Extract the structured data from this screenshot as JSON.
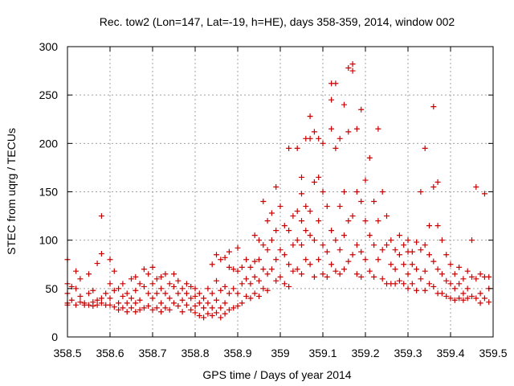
{
  "chart_data": {
    "type": "scatter",
    "title": "Rec. tow2 (Lon=147, Lat=-19, h=HE), days 358-359, 2014, window 002",
    "xlabel": "GPS time / Days of year 2014",
    "ylabel": "STEC from uqrg / TECUs",
    "xlim": [
      358.5,
      359.5
    ],
    "ylim": [
      0,
      300
    ],
    "x_ticks": [
      358.5,
      358.6,
      358.7,
      358.8,
      358.9,
      359.0,
      359.1,
      359.2,
      359.3,
      359.4,
      359.5
    ],
    "x_tick_labels": [
      "358.5",
      "358.6",
      "358.7",
      "358.8",
      "358.9",
      "359",
      "359.1",
      "359.2",
      "359.3",
      "359.4",
      "359.5"
    ],
    "y_ticks": [
      0,
      50,
      100,
      150,
      200,
      250,
      300
    ],
    "y_tick_labels": [
      "0",
      "50",
      "100",
      "150",
      "200",
      "250",
      "300"
    ],
    "grid": true,
    "marker": "+",
    "color": "#cc0000",
    "points": [
      [
        358.5,
        80
      ],
      [
        358.5,
        55
      ],
      [
        358.5,
        45
      ],
      [
        358.5,
        35
      ],
      [
        358.5,
        33
      ],
      [
        358.51,
        52
      ],
      [
        358.51,
        38
      ],
      [
        358.52,
        68
      ],
      [
        358.52,
        50
      ],
      [
        358.52,
        33
      ],
      [
        358.53,
        60
      ],
      [
        358.53,
        42
      ],
      [
        358.53,
        36
      ],
      [
        358.54,
        35
      ],
      [
        358.54,
        33
      ],
      [
        358.55,
        65
      ],
      [
        358.55,
        45
      ],
      [
        358.55,
        33
      ],
      [
        358.56,
        48
      ],
      [
        358.56,
        36
      ],
      [
        358.56,
        32
      ],
      [
        358.57,
        76
      ],
      [
        358.57,
        38
      ],
      [
        358.57,
        33
      ],
      [
        358.58,
        125
      ],
      [
        358.58,
        86
      ],
      [
        358.58,
        40
      ],
      [
        358.58,
        35
      ],
      [
        358.59,
        45
      ],
      [
        358.59,
        33
      ],
      [
        358.6,
        80
      ],
      [
        358.6,
        55
      ],
      [
        358.6,
        40
      ],
      [
        358.6,
        33
      ],
      [
        358.61,
        68
      ],
      [
        358.61,
        48
      ],
      [
        358.61,
        31
      ],
      [
        358.62,
        50
      ],
      [
        358.62,
        35
      ],
      [
        358.62,
        28
      ],
      [
        358.63,
        55
      ],
      [
        358.63,
        42
      ],
      [
        358.63,
        30
      ],
      [
        358.64,
        45
      ],
      [
        358.64,
        35
      ],
      [
        358.64,
        26
      ],
      [
        358.65,
        60
      ],
      [
        358.65,
        40
      ],
      [
        358.65,
        30
      ],
      [
        358.66,
        62
      ],
      [
        358.66,
        48
      ],
      [
        358.66,
        35
      ],
      [
        358.66,
        26
      ],
      [
        358.67,
        55
      ],
      [
        358.67,
        38
      ],
      [
        358.67,
        28
      ],
      [
        358.68,
        70
      ],
      [
        358.68,
        52
      ],
      [
        358.68,
        30
      ],
      [
        358.69,
        65
      ],
      [
        358.69,
        45
      ],
      [
        358.69,
        32
      ],
      [
        358.7,
        72
      ],
      [
        358.7,
        55
      ],
      [
        358.7,
        40
      ],
      [
        358.7,
        28
      ],
      [
        358.71,
        60
      ],
      [
        358.71,
        45
      ],
      [
        358.71,
        30
      ],
      [
        358.72,
        62
      ],
      [
        358.72,
        50
      ],
      [
        358.72,
        35
      ],
      [
        358.72,
        26
      ],
      [
        358.73,
        65
      ],
      [
        358.73,
        45
      ],
      [
        358.73,
        30
      ],
      [
        358.74,
        55
      ],
      [
        358.74,
        40
      ],
      [
        358.74,
        28
      ],
      [
        358.75,
        65
      ],
      [
        358.75,
        52
      ],
      [
        358.75,
        35
      ],
      [
        358.76,
        58
      ],
      [
        358.76,
        45
      ],
      [
        358.76,
        32
      ],
      [
        358.77,
        50
      ],
      [
        358.77,
        38
      ],
      [
        358.77,
        26
      ],
      [
        358.78,
        55
      ],
      [
        358.78,
        45
      ],
      [
        358.78,
        33
      ],
      [
        358.79,
        52
      ],
      [
        358.79,
        40
      ],
      [
        358.79,
        28
      ],
      [
        358.8,
        50
      ],
      [
        358.8,
        42
      ],
      [
        358.8,
        32
      ],
      [
        358.8,
        25
      ],
      [
        358.81,
        45
      ],
      [
        358.81,
        35
      ],
      [
        358.81,
        22
      ],
      [
        358.82,
        40
      ],
      [
        358.82,
        30
      ],
      [
        358.82,
        20
      ],
      [
        358.83,
        50
      ],
      [
        358.83,
        35
      ],
      [
        358.83,
        24
      ],
      [
        358.84,
        75
      ],
      [
        358.84,
        45
      ],
      [
        358.84,
        30
      ],
      [
        358.84,
        22
      ],
      [
        358.85,
        85
      ],
      [
        358.85,
        58
      ],
      [
        358.85,
        38
      ],
      [
        358.85,
        25
      ],
      [
        358.86,
        80
      ],
      [
        358.86,
        48
      ],
      [
        358.86,
        30
      ],
      [
        358.86,
        20
      ],
      [
        358.87,
        82
      ],
      [
        358.87,
        52
      ],
      [
        358.87,
        35
      ],
      [
        358.87,
        24
      ],
      [
        358.88,
        88
      ],
      [
        358.88,
        72
      ],
      [
        358.88,
        45
      ],
      [
        358.88,
        28
      ],
      [
        358.89,
        70
      ],
      [
        358.89,
        50
      ],
      [
        358.89,
        30
      ],
      [
        358.9,
        92
      ],
      [
        358.9,
        68
      ],
      [
        358.9,
        45
      ],
      [
        358.9,
        32
      ],
      [
        358.91,
        72
      ],
      [
        358.91,
        55
      ],
      [
        358.91,
        35
      ],
      [
        358.92,
        80
      ],
      [
        358.92,
        60
      ],
      [
        358.92,
        42
      ],
      [
        358.93,
        72
      ],
      [
        358.93,
        55
      ],
      [
        358.93,
        40
      ],
      [
        358.94,
        105
      ],
      [
        358.94,
        78
      ],
      [
        358.94,
        62
      ],
      [
        358.94,
        45
      ],
      [
        358.95,
        100
      ],
      [
        358.95,
        80
      ],
      [
        358.95,
        58
      ],
      [
        358.95,
        42
      ],
      [
        358.96,
        140
      ],
      [
        358.96,
        95
      ],
      [
        358.96,
        70
      ],
      [
        358.96,
        50
      ],
      [
        358.97,
        120
      ],
      [
        358.97,
        90
      ],
      [
        358.97,
        65
      ],
      [
        358.97,
        48
      ],
      [
        358.98,
        128
      ],
      [
        358.98,
        100
      ],
      [
        358.98,
        70
      ],
      [
        358.99,
        155
      ],
      [
        358.99,
        110
      ],
      [
        358.99,
        80
      ],
      [
        358.99,
        58
      ],
      [
        359.0,
        135
      ],
      [
        359.0,
        90
      ],
      [
        359.0,
        62
      ],
      [
        359.01,
        115
      ],
      [
        359.01,
        85
      ],
      [
        359.01,
        55
      ],
      [
        359.02,
        195
      ],
      [
        359.02,
        110
      ],
      [
        359.02,
        75
      ],
      [
        359.02,
        52
      ],
      [
        359.03,
        125
      ],
      [
        359.03,
        95
      ],
      [
        359.03,
        68
      ],
      [
        359.04,
        195
      ],
      [
        359.04,
        130
      ],
      [
        359.04,
        100
      ],
      [
        359.04,
        70
      ],
      [
        359.05,
        165
      ],
      [
        359.05,
        148
      ],
      [
        359.05,
        120
      ],
      [
        359.05,
        95
      ],
      [
        359.05,
        65
      ],
      [
        359.06,
        205
      ],
      [
        359.06,
        135
      ],
      [
        359.06,
        110
      ],
      [
        359.06,
        80
      ],
      [
        359.07,
        228
      ],
      [
        359.07,
        205
      ],
      [
        359.07,
        130
      ],
      [
        359.07,
        105
      ],
      [
        359.07,
        75
      ],
      [
        359.08,
        212
      ],
      [
        359.08,
        160
      ],
      [
        359.08,
        100
      ],
      [
        359.08,
        62
      ],
      [
        359.09,
        205
      ],
      [
        359.09,
        165
      ],
      [
        359.09,
        120
      ],
      [
        359.09,
        80
      ],
      [
        359.1,
        200
      ],
      [
        359.1,
        150
      ],
      [
        359.1,
        95
      ],
      [
        359.1,
        65
      ],
      [
        359.11,
        135
      ],
      [
        359.11,
        88
      ],
      [
        359.11,
        62
      ],
      [
        359.12,
        262
      ],
      [
        359.12,
        245
      ],
      [
        359.12,
        215
      ],
      [
        359.12,
        110
      ],
      [
        359.12,
        75
      ],
      [
        359.13,
        262
      ],
      [
        359.13,
        195
      ],
      [
        359.13,
        100
      ],
      [
        359.13,
        68
      ],
      [
        359.14,
        205
      ],
      [
        359.14,
        135
      ],
      [
        359.14,
        90
      ],
      [
        359.14,
        65
      ],
      [
        359.15,
        240
      ],
      [
        359.15,
        150
      ],
      [
        359.15,
        105
      ],
      [
        359.15,
        70
      ],
      [
        359.16,
        278
      ],
      [
        359.16,
        212
      ],
      [
        359.16,
        120
      ],
      [
        359.16,
        78
      ],
      [
        359.17,
        282
      ],
      [
        359.17,
        275
      ],
      [
        359.17,
        125
      ],
      [
        359.17,
        85
      ],
      [
        359.18,
        215
      ],
      [
        359.18,
        150
      ],
      [
        359.18,
        95
      ],
      [
        359.18,
        65
      ],
      [
        359.19,
        235
      ],
      [
        359.19,
        140
      ],
      [
        359.19,
        88
      ],
      [
        359.19,
        62
      ],
      [
        359.2,
        162
      ],
      [
        359.2,
        120
      ],
      [
        359.2,
        80
      ],
      [
        359.21,
        185
      ],
      [
        359.21,
        105
      ],
      [
        359.21,
        68
      ],
      [
        359.22,
        140
      ],
      [
        359.22,
        95
      ],
      [
        359.22,
        62
      ],
      [
        359.23,
        215
      ],
      [
        359.23,
        120
      ],
      [
        359.23,
        80
      ],
      [
        359.24,
        150
      ],
      [
        359.24,
        90
      ],
      [
        359.24,
        60
      ],
      [
        359.25,
        125
      ],
      [
        359.25,
        95
      ],
      [
        359.25,
        55
      ],
      [
        359.26,
        100
      ],
      [
        359.26,
        75
      ],
      [
        359.26,
        55
      ],
      [
        359.27,
        90
      ],
      [
        359.27,
        70
      ],
      [
        359.27,
        55
      ],
      [
        359.28,
        105
      ],
      [
        359.28,
        85
      ],
      [
        359.28,
        58
      ],
      [
        359.29,
        95
      ],
      [
        359.29,
        75
      ],
      [
        359.29,
        55
      ],
      [
        359.3,
        100
      ],
      [
        359.3,
        88
      ],
      [
        359.3,
        65
      ],
      [
        359.3,
        50
      ],
      [
        359.31,
        88
      ],
      [
        359.31,
        75
      ],
      [
        359.31,
        55
      ],
      [
        359.32,
        98
      ],
      [
        359.32,
        70
      ],
      [
        359.32,
        48
      ],
      [
        359.33,
        150
      ],
      [
        359.33,
        90
      ],
      [
        359.33,
        60
      ],
      [
        359.34,
        195
      ],
      [
        359.34,
        95
      ],
      [
        359.34,
        68
      ],
      [
        359.34,
        48
      ],
      [
        359.35,
        115
      ],
      [
        359.35,
        85
      ],
      [
        359.35,
        55
      ],
      [
        359.36,
        238
      ],
      [
        359.36,
        155
      ],
      [
        359.36,
        78
      ],
      [
        359.36,
        52
      ],
      [
        359.37,
        160
      ],
      [
        359.37,
        115
      ],
      [
        359.37,
        70
      ],
      [
        359.37,
        45
      ],
      [
        359.38,
        100
      ],
      [
        359.38,
        65
      ],
      [
        359.38,
        45
      ],
      [
        359.39,
        85
      ],
      [
        359.39,
        58
      ],
      [
        359.39,
        42
      ],
      [
        359.4,
        75
      ],
      [
        359.4,
        55
      ],
      [
        359.4,
        40
      ],
      [
        359.41,
        65
      ],
      [
        359.41,
        50
      ],
      [
        359.41,
        38
      ],
      [
        359.42,
        72
      ],
      [
        359.42,
        55
      ],
      [
        359.42,
        40
      ],
      [
        359.43,
        60
      ],
      [
        359.43,
        45
      ],
      [
        359.43,
        38
      ],
      [
        359.44,
        68
      ],
      [
        359.44,
        50
      ],
      [
        359.44,
        40
      ],
      [
        359.45,
        100
      ],
      [
        359.45,
        62
      ],
      [
        359.45,
        42
      ],
      [
        359.46,
        155
      ],
      [
        359.46,
        60
      ],
      [
        359.46,
        40
      ],
      [
        359.47,
        65
      ],
      [
        359.47,
        45
      ],
      [
        359.47,
        35
      ],
      [
        359.48,
        148
      ],
      [
        359.48,
        62
      ],
      [
        359.48,
        40
      ],
      [
        359.49,
        62
      ],
      [
        359.49,
        50
      ],
      [
        359.49,
        36
      ]
    ]
  }
}
